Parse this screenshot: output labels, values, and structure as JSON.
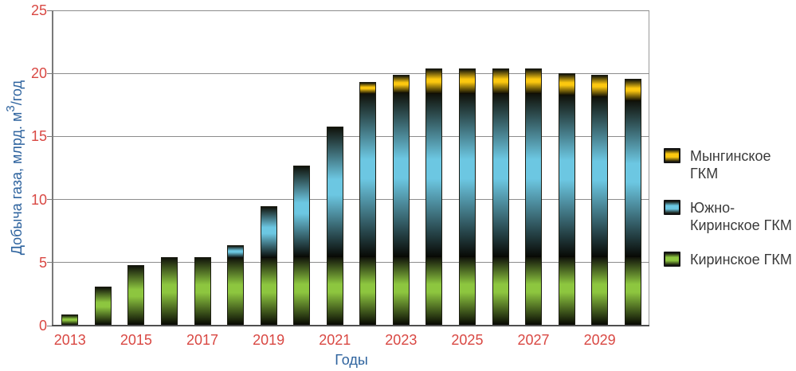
{
  "chart_data": {
    "type": "bar",
    "stacked": true,
    "title": "",
    "xlabel": "Годы",
    "ylabel": "Добыча газа, млрд. м³/год",
    "ylabel_parts": {
      "pre": "Добыча газа, млрд. м",
      "sup": "3",
      "post": "/год"
    },
    "ylim": [
      0,
      25
    ],
    "yticks": [
      0,
      5,
      10,
      15,
      20,
      25
    ],
    "grid": "horizontal",
    "legend_position": "right",
    "categories": [
      2013,
      2014,
      2015,
      2016,
      2017,
      2018,
      2019,
      2020,
      2021,
      2022,
      2023,
      2024,
      2025,
      2026,
      2027,
      2028,
      2029,
      2030
    ],
    "xtick_labels": [
      "2013",
      "2015",
      "2017",
      "2019",
      "2021",
      "2023",
      "2025",
      "2027",
      "2029"
    ],
    "series": [
      {
        "name": "Киринское ГКМ",
        "color": "#8dc63f",
        "values": [
          0.9,
          3.1,
          4.8,
          5.4,
          5.4,
          5.4,
          5.4,
          5.4,
          5.4,
          5.4,
          5.4,
          5.4,
          5.4,
          5.4,
          5.4,
          5.4,
          5.4,
          5.4
        ]
      },
      {
        "name": "Южно-Киринское ГКМ",
        "color": "#6cc7e2",
        "values": [
          0,
          0,
          0,
          0,
          0,
          1.0,
          4.1,
          7.3,
          10.4,
          13.0,
          13.1,
          13.0,
          13.0,
          13.0,
          13.0,
          12.9,
          12.8,
          12.5
        ]
      },
      {
        "name": "Мынгинское ГКМ",
        "color": "#fcc80f",
        "values": [
          0,
          0,
          0,
          0,
          0,
          0,
          0,
          0,
          0,
          0.9,
          1.4,
          2.0,
          2.0,
          2.0,
          2.0,
          1.7,
          1.7,
          1.7
        ]
      }
    ],
    "totals": [
      0.9,
      3.1,
      4.8,
      5.4,
      5.4,
      6.4,
      9.5,
      12.7,
      15.8,
      19.3,
      19.9,
      20.4,
      20.4,
      20.4,
      20.4,
      20.0,
      19.9,
      19.6
    ]
  },
  "colors": {
    "tick_label_red": "#d94843",
    "axis_title_blue": "#2e639e",
    "legend_text": "#3a3a3a",
    "gridline_gray": "#8c8c8c",
    "axis_line_gray": "#7a7a7a",
    "background": "#ffffff",
    "bar_edge_dark": "#1c1c12"
  }
}
